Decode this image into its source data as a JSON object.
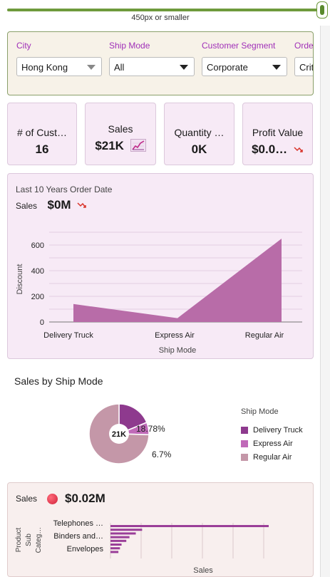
{
  "resizer": {
    "label": "450px or smaller"
  },
  "filters": [
    {
      "label": "City",
      "value": "Hong Kong"
    },
    {
      "label": "Ship Mode",
      "value": "All"
    },
    {
      "label": "Customer Segment",
      "value": "Corporate"
    },
    {
      "label": "Orde",
      "value": "Crit"
    }
  ],
  "tiles": [
    {
      "title": "# of Cust…",
      "value": "16"
    },
    {
      "title": "Sales",
      "value": "$21K"
    },
    {
      "title": "Quantity …",
      "value": "0K"
    },
    {
      "title": "Profit Value",
      "value": "$0.0…"
    }
  ],
  "area_card": {
    "subtitle": "Last 10 Years Order Date",
    "kpi_label": "Sales",
    "kpi_value": "$0M"
  },
  "pie_section": {
    "title": "Sales by Ship Mode"
  },
  "bar_card": {
    "kpi_label": "Sales",
    "kpi_value": "$0.02M"
  },
  "colors": {
    "accent": "#a030b8",
    "area": "#b86ca8",
    "delivery_truck": "#8e3a8e",
    "express_air": "#c06ab8",
    "regular_air": "#c497a8",
    "down_arrow": "#d9342b"
  },
  "chart_data": [
    {
      "type": "area",
      "categories": [
        "Delivery Truck",
        "Express Air",
        "Regular Air"
      ],
      "values": [
        140,
        30,
        650
      ],
      "xlabel": "Ship Mode",
      "ylabel": "Discount",
      "yticks": [
        "0",
        "200",
        "400",
        "600"
      ],
      "ylim": [
        0,
        700
      ],
      "grid": true
    },
    {
      "type": "pie",
      "donut": true,
      "center_label": "21K",
      "legend_title": "Ship Mode",
      "legend_position": "right",
      "slices": [
        {
          "name": "Delivery Truck",
          "value": 18.78,
          "label": "18.78%"
        },
        {
          "name": "Express Air",
          "value": 6.7,
          "label": "6.7%"
        },
        {
          "name": "Regular Air",
          "value": 74.51,
          "label": "74.51%"
        }
      ]
    },
    {
      "type": "bar",
      "orientation": "horizontal",
      "xlabel": "Sales",
      "ylabel": "Product Sub Categ…",
      "visible_category_labels": [
        "Telephones …",
        "Binders and…",
        "Envelopes"
      ],
      "values": [
        1.0,
        0.2,
        0.16,
        0.12,
        0.1,
        0.07,
        0.06,
        0.05
      ]
    }
  ]
}
